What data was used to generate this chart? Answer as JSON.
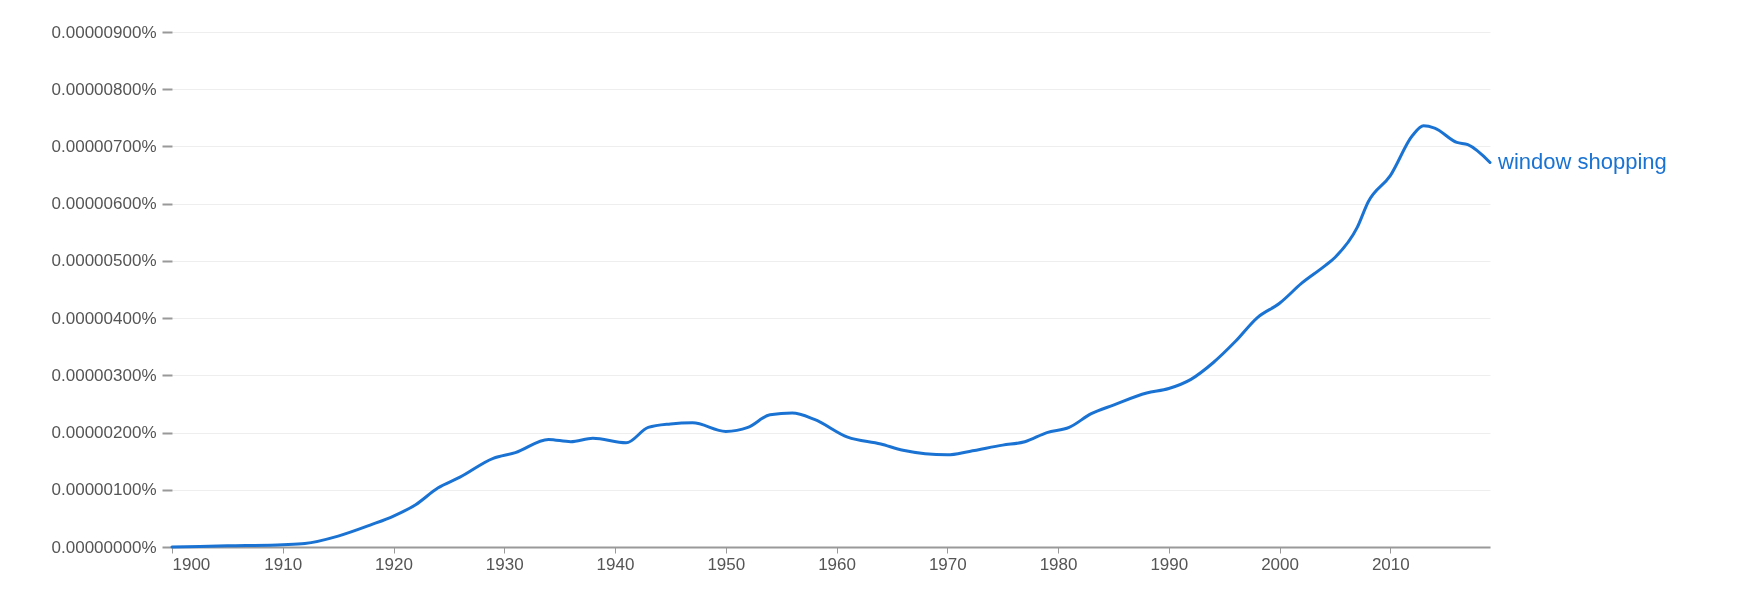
{
  "chart_data": {
    "type": "line",
    "x": [
      1900,
      1905,
      1910,
      1912,
      1915,
      1918,
      1920,
      1922,
      1924,
      1926,
      1929,
      1931,
      1934,
      1936,
      1938,
      1941,
      1943,
      1945,
      1947,
      1950,
      1952,
      1954,
      1956,
      1958,
      1961,
      1964,
      1966,
      1970,
      1972,
      1975,
      1977,
      1979,
      1981,
      1983,
      1985,
      1988,
      1990,
      1992,
      1994,
      1996,
      1998,
      2000,
      2002,
      2004,
      2005,
      2007,
      2008,
      2010,
      2012,
      2013,
      2014,
      2016,
      2017,
      2019
    ],
    "series": [
      {
        "name": "window shopping",
        "color": "#1a73d2",
        "values": [
          0,
          2e-08,
          4e-08,
          6e-08,
          1.9e-07,
          3.9e-07,
          5.4e-07,
          7.4e-07,
          1.03e-06,
          1.22e-06,
          1.55e-06,
          1.65e-06,
          1.88e-06,
          1.84e-06,
          1.9e-06,
          1.82e-06,
          2.09e-06,
          2.15e-06,
          2.17e-06,
          2.02e-06,
          2.09e-06,
          2.31e-06,
          2.34e-06,
          2.23e-06,
          1.92e-06,
          1.8e-06,
          1.69e-06,
          1.61e-06,
          1.67e-06,
          1.78e-06,
          1.84e-06,
          2e-06,
          2.09e-06,
          2.33e-06,
          2.48e-06,
          2.69e-06,
          2.77e-06,
          2.93e-06,
          3.22e-06,
          3.59e-06,
          4.01e-06,
          4.26e-06,
          4.61e-06,
          4.9e-06,
          5.06e-06,
          5.58e-06,
          6.03e-06,
          6.49e-06,
          7.19e-06,
          7.36e-06,
          7.32e-06,
          7.07e-06,
          7.03e-06,
          6.72e-06
        ]
      }
    ],
    "xlim": [
      1900,
      2019
    ],
    "xticks": [
      1900,
      1910,
      1920,
      1930,
      1940,
      1950,
      1960,
      1970,
      1980,
      1990,
      2000,
      2010
    ],
    "ylim": [
      0,
      9e-06
    ],
    "yticks": [
      {
        "value": 0,
        "label": "0.00000000%"
      },
      {
        "value": 1e-06,
        "label": "0.00000100%"
      },
      {
        "value": 2e-06,
        "label": "0.00000200%"
      },
      {
        "value": 3e-06,
        "label": "0.00000300%"
      },
      {
        "value": 4e-06,
        "label": "0.00000400%"
      },
      {
        "value": 5e-06,
        "label": "0.00000500%"
      },
      {
        "value": 6e-06,
        "label": "0.00000600%"
      },
      {
        "value": 7e-06,
        "label": "0.00000700%"
      },
      {
        "value": 8e-06,
        "label": "0.00000800%"
      },
      {
        "value": 9e-06,
        "label": "0.00000900%"
      }
    ],
    "grid": "y",
    "legend": false,
    "marker": "none",
    "line_style": "solid"
  }
}
